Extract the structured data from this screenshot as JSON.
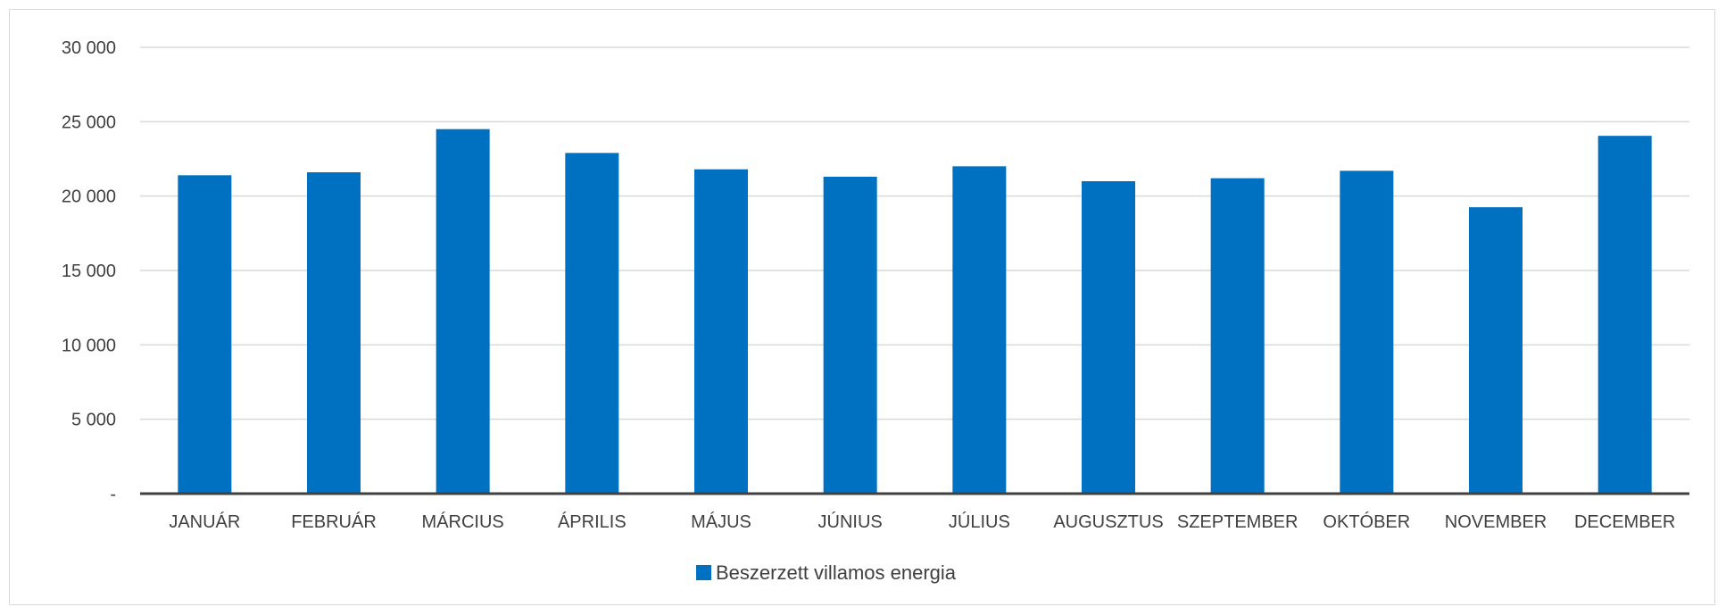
{
  "chart_data": {
    "type": "bar",
    "categories": [
      "JANUÁR",
      "FEBRUÁR",
      "MÁRCIUS",
      "ÁPRILIS",
      "MÁJUS",
      "JÚNIUS",
      "JÚLIUS",
      "AUGUSZTUS",
      "SZEPTEMBER",
      "OKTÓBER",
      "NOVEMBER",
      "DECEMBER"
    ],
    "series": [
      {
        "name": "Beszerzett villamos energia",
        "values": [
          21400,
          21600,
          24500,
          22900,
          21800,
          21300,
          22000,
          21000,
          21200,
          21700,
          19250,
          24050
        ],
        "color": "#0070C0"
      }
    ],
    "ylim": [
      0,
      30000
    ],
    "yticks": [
      0,
      5000,
      10000,
      15000,
      20000,
      25000,
      30000
    ],
    "ytick_labels": [
      "-",
      "5 000",
      "10 000",
      "15 000",
      "20 000",
      "25 000",
      "30 000"
    ],
    "grid": true,
    "legend": "bottom",
    "title": "",
    "xlabel": "",
    "ylabel": ""
  }
}
